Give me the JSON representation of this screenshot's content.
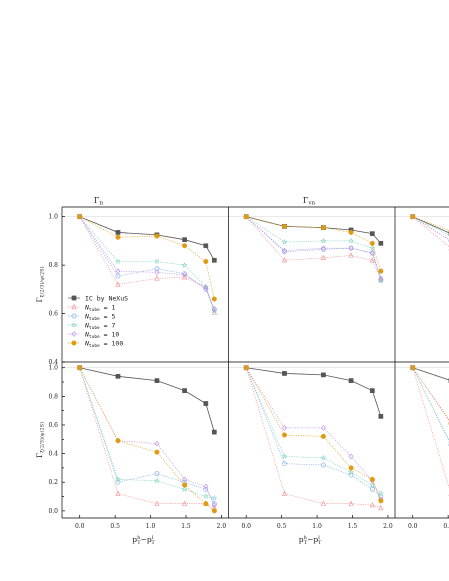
{
  "chart_data": {
    "type": "line",
    "column_titles": [
      "Γ_n",
      "Γ_vn"
    ],
    "ylabel": "Γ_{ξ(2/3)/ψ(2S)}",
    "xlabel": "p_T^h − p_T^l",
    "x": [
      0.0,
      0.54,
      1.09,
      1.48,
      1.78,
      1.9
    ],
    "xlim": [
      -0.25,
      2.1
    ],
    "xticks": [
      "0.0",
      "0.5",
      "1.0",
      "1.5",
      "2.0"
    ],
    "ylim_top": [
      0.4,
      1.04
    ],
    "yticks_top": [
      "0.4",
      "0.6",
      "0.8",
      "1.0"
    ],
    "ylim_bottom": [
      -0.05,
      1.04
    ],
    "yticks_bottom": [
      "0.0",
      "0.2",
      "0.4",
      "0.6",
      "0.8",
      "1.0"
    ],
    "legend": [
      {
        "label": "IC by NeXuS",
        "color": "#555555",
        "marker": "square",
        "dashed": false
      },
      {
        "label": "N_tube = 1",
        "color": "#f28a8a",
        "marker": "triangle",
        "dashed": true
      },
      {
        "label": "N_tube = 5",
        "color": "#7ba7e8",
        "marker": "circle",
        "dashed": true
      },
      {
        "label": "N_tube = 7",
        "color": "#6fd0b8",
        "marker": "star",
        "dashed": true
      },
      {
        "label": "N_tube = 10",
        "color": "#c08ae8",
        "marker": "diamond",
        "dashed": true
      },
      {
        "label": "N_tube = 100",
        "color": "#e09a10",
        "marker": "filled-circle",
        "dashed": true
      }
    ],
    "panels": [
      {
        "row": 0,
        "col": 0,
        "series": [
          [
            1.0,
            0.935,
            0.925,
            0.905,
            0.88,
            0.82
          ],
          [
            1.0,
            0.72,
            0.745,
            0.75,
            0.71,
            0.605
          ],
          [
            1.0,
            0.755,
            0.785,
            0.765,
            0.7,
            0.615
          ],
          [
            1.0,
            0.815,
            0.815,
            0.8,
            0.71,
            0.61
          ],
          [
            1.0,
            0.775,
            0.77,
            0.76,
            0.705,
            0.62
          ],
          [
            1.0,
            0.915,
            0.92,
            0.88,
            0.815,
            0.66
          ]
        ]
      },
      {
        "row": 0,
        "col": 1,
        "series": [
          [
            1.0,
            0.96,
            0.955,
            0.945,
            0.93,
            0.89
          ],
          [
            1.0,
            0.82,
            0.83,
            0.84,
            0.82,
            0.74
          ],
          [
            1.0,
            0.855,
            0.865,
            0.87,
            0.85,
            0.74
          ],
          [
            1.0,
            0.895,
            0.9,
            0.9,
            0.87,
            0.735
          ],
          [
            1.0,
            0.86,
            0.87,
            0.87,
            0.85,
            0.745
          ],
          [
            1.0,
            0.96,
            0.955,
            0.935,
            0.89,
            0.775
          ]
        ]
      },
      {
        "row": 0,
        "col": 2,
        "series": [
          [
            1.0,
            0.93
          ],
          [
            1.0,
            0.87
          ],
          [
            1.0,
            0.9
          ],
          [
            1.0,
            0.92
          ],
          [
            1.0,
            0.9
          ],
          [
            1.0,
            0.94
          ]
        ]
      },
      {
        "row": 1,
        "col": 0,
        "series": [
          [
            1.0,
            0.94,
            0.91,
            0.84,
            0.75,
            0.55
          ],
          [
            1.0,
            0.12,
            0.05,
            0.05,
            0.05,
            0.02
          ],
          [
            1.0,
            0.2,
            0.26,
            0.2,
            0.15,
            0.05
          ],
          [
            1.0,
            0.22,
            0.21,
            0.15,
            0.1,
            0.09
          ],
          [
            1.0,
            0.49,
            0.47,
            0.22,
            0.17,
            0.04
          ],
          [
            1.0,
            0.49,
            0.41,
            0.18,
            0.05,
            0.0
          ]
        ]
      },
      {
        "row": 1,
        "col": 1,
        "series": [
          [
            1.0,
            0.96,
            0.95,
            0.91,
            0.84,
            0.66
          ],
          [
            1.0,
            0.12,
            0.05,
            0.05,
            0.04,
            0.02
          ],
          [
            1.0,
            0.33,
            0.32,
            0.25,
            0.15,
            0.1
          ],
          [
            1.0,
            0.38,
            0.37,
            0.27,
            0.18,
            0.12
          ],
          [
            1.0,
            0.58,
            0.58,
            0.38,
            0.21,
            0.08
          ],
          [
            1.0,
            0.53,
            0.52,
            0.3,
            0.22,
            0.07
          ]
        ]
      },
      {
        "row": 1,
        "col": 2,
        "series": [
          [
            1.0,
            0.91
          ],
          [
            1.0,
            0.12
          ],
          [
            1.0,
            0.46
          ],
          [
            1.0,
            0.47
          ],
          [
            1.0,
            0.62
          ],
          [
            1.0,
            0.61
          ]
        ]
      }
    ]
  }
}
